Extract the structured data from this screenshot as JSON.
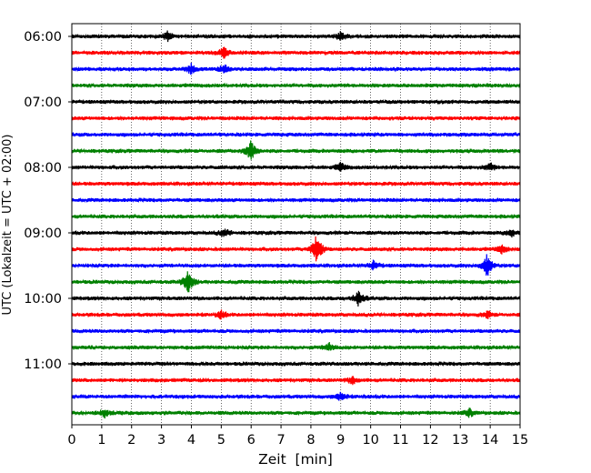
{
  "chart_data": {
    "type": "line",
    "chart_kind": "helicorder",
    "xlabel": "Zeit  [min]",
    "ylabel": "UTC (Lokalzeit = UTC + 02:00)",
    "xlim": [
      0,
      15
    ],
    "x_ticks": [
      0,
      1,
      2,
      3,
      4,
      5,
      6,
      7,
      8,
      9,
      10,
      11,
      12,
      13,
      14,
      15
    ],
    "x_tick_labels": [
      "0",
      "1",
      "2",
      "3",
      "4",
      "5",
      "6",
      "7",
      "8",
      "9",
      "10",
      "11",
      "12",
      "13",
      "14",
      "15"
    ],
    "vertical_grid": "dotted",
    "trace_interval_minutes": 15,
    "trace_start_times_utc": [
      "06:00",
      "06:15",
      "06:30",
      "06:45",
      "07:00",
      "07:15",
      "07:30",
      "07:45",
      "08:00",
      "08:15",
      "08:30",
      "08:45",
      "09:00",
      "09:15",
      "09:30",
      "09:45",
      "10:00",
      "10:15",
      "10:30",
      "10:45",
      "11:00",
      "11:15",
      "11:30",
      "11:45"
    ],
    "y_tick_labels": [
      {
        "trace_index": 0,
        "label": "06:00"
      },
      {
        "trace_index": 4,
        "label": "07:00"
      },
      {
        "trace_index": 8,
        "label": "08:00"
      },
      {
        "trace_index": 12,
        "label": "09:00"
      },
      {
        "trace_index": 16,
        "label": "10:00"
      },
      {
        "trace_index": 20,
        "label": "11:00"
      }
    ],
    "colors": [
      "#000000",
      "#ff0000",
      "#0000ff",
      "#008000"
    ],
    "events": [
      {
        "trace_index": 0,
        "minute": 3.2,
        "amplitude": 0.35
      },
      {
        "trace_index": 0,
        "minute": 9.0,
        "amplitude": 0.35
      },
      {
        "trace_index": 1,
        "minute": 5.1,
        "amplitude": 0.45
      },
      {
        "trace_index": 2,
        "minute": 4.0,
        "amplitude": 0.4
      },
      {
        "trace_index": 2,
        "minute": 5.1,
        "amplitude": 0.35
      },
      {
        "trace_index": 7,
        "minute": 6.0,
        "amplitude": 0.9
      },
      {
        "trace_index": 8,
        "minute": 9.0,
        "amplitude": 0.35
      },
      {
        "trace_index": 8,
        "minute": 14.0,
        "amplitude": 0.3
      },
      {
        "trace_index": 12,
        "minute": 5.1,
        "amplitude": 0.35
      },
      {
        "trace_index": 12,
        "minute": 14.7,
        "amplitude": 0.3
      },
      {
        "trace_index": 13,
        "minute": 8.2,
        "amplitude": 1.3
      },
      {
        "trace_index": 13,
        "minute": 14.4,
        "amplitude": 0.35
      },
      {
        "trace_index": 14,
        "minute": 10.1,
        "amplitude": 0.35
      },
      {
        "trace_index": 14,
        "minute": 13.9,
        "amplitude": 0.9
      },
      {
        "trace_index": 15,
        "minute": 3.9,
        "amplitude": 1.0
      },
      {
        "trace_index": 16,
        "minute": 9.6,
        "amplitude": 0.6
      },
      {
        "trace_index": 17,
        "minute": 5.0,
        "amplitude": 0.3
      },
      {
        "trace_index": 17,
        "minute": 13.9,
        "amplitude": 0.3
      },
      {
        "trace_index": 19,
        "minute": 8.6,
        "amplitude": 0.3
      },
      {
        "trace_index": 21,
        "minute": 9.4,
        "amplitude": 0.3
      },
      {
        "trace_index": 22,
        "minute": 9.0,
        "amplitude": 0.35
      },
      {
        "trace_index": 23,
        "minute": 1.1,
        "amplitude": 0.3
      },
      {
        "trace_index": 23,
        "minute": 13.3,
        "amplitude": 0.3
      }
    ]
  }
}
